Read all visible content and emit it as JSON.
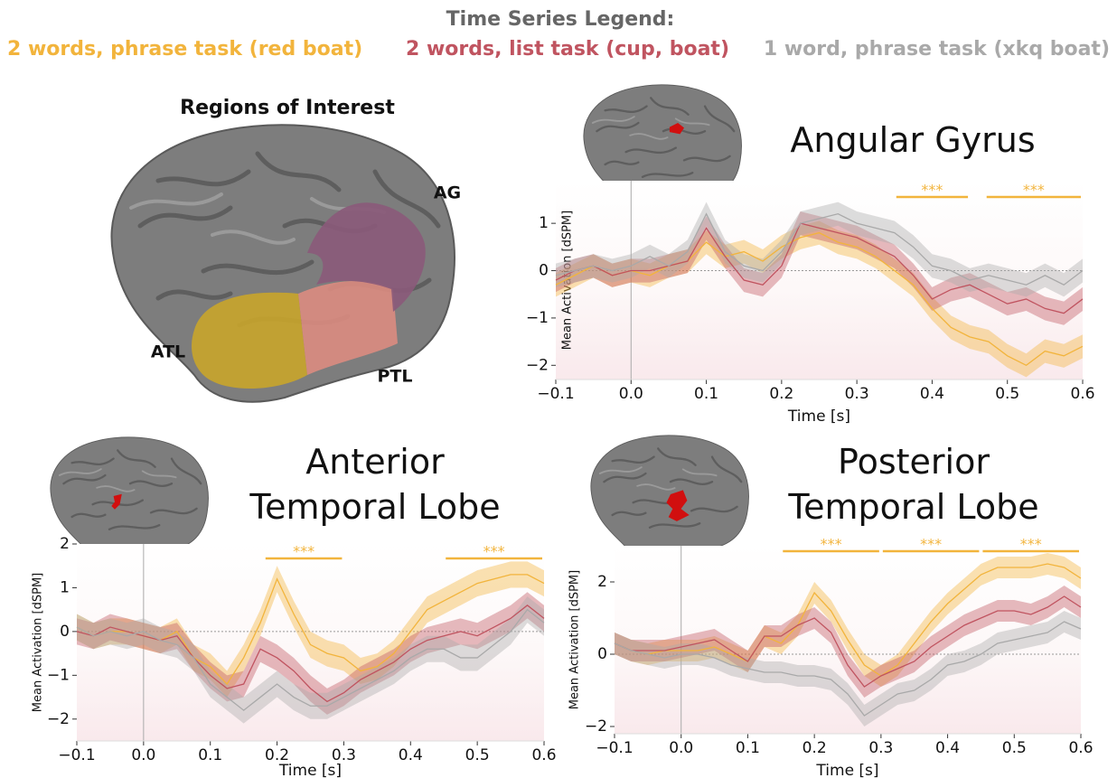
{
  "legend_title": "Time Series Legend:",
  "roi": {
    "title": "Regions of Interest",
    "labels": [
      "AG",
      "ATL",
      "PTL"
    ]
  },
  "chart_data": [
    {
      "type": "line",
      "title": "Angular Gyrus",
      "xlabel": "Time [s]",
      "ylabel": "Mean Activation [dSPM]",
      "x": [
        -0.1,
        -0.075,
        -0.05,
        -0.025,
        0,
        0.025,
        0.05,
        0.075,
        0.1,
        0.125,
        0.15,
        0.175,
        0.2,
        0.225,
        0.25,
        0.275,
        0.3,
        0.325,
        0.35,
        0.375,
        0.4,
        0.425,
        0.45,
        0.475,
        0.5,
        0.525,
        0.55,
        0.575,
        0.6
      ],
      "series": [
        {
          "name": "2 words, phrase task (red boat)",
          "color": "#f2b43c",
          "error": 0.25,
          "values": [
            -0.3,
            -0.1,
            0.1,
            -0.1,
            0.0,
            -0.1,
            0.1,
            0.2,
            0.6,
            0.3,
            0.4,
            0.2,
            0.5,
            0.7,
            0.8,
            0.6,
            0.5,
            0.3,
            0.0,
            -0.3,
            -0.8,
            -1.2,
            -1.4,
            -1.5,
            -1.8,
            -2.0,
            -1.7,
            -1.8,
            -1.6
          ]
        },
        {
          "name": "2 words, list task (cup, boat)",
          "color": "#c05460",
          "error": 0.25,
          "values": [
            -0.2,
            0.0,
            0.1,
            -0.1,
            0.0,
            0.0,
            0.1,
            0.2,
            0.9,
            0.3,
            -0.2,
            -0.3,
            0.1,
            1.0,
            0.9,
            0.8,
            0.7,
            0.5,
            0.3,
            -0.1,
            -0.6,
            -0.4,
            -0.3,
            -0.5,
            -0.7,
            -0.6,
            -0.8,
            -0.9,
            -0.6
          ]
        },
        {
          "name": "1 word, phrase task (xkq boat)",
          "color": "#a9a9a9",
          "error": 0.25,
          "values": [
            -0.1,
            0.0,
            0.1,
            0.0,
            0.1,
            0.3,
            0.1,
            0.4,
            1.2,
            0.4,
            0.1,
            0.0,
            0.4,
            1.0,
            1.1,
            1.2,
            1.0,
            0.9,
            0.8,
            0.5,
            0.1,
            0.0,
            -0.2,
            -0.1,
            -0.2,
            -0.3,
            -0.1,
            -0.3,
            0.0
          ]
        }
      ],
      "xlim": [
        -0.1,
        0.6
      ],
      "xticks": [
        {
          "value": -0.1,
          "label": "−0.1"
        },
        {
          "value": 0,
          "label": "0.0"
        },
        0.1,
        0.2,
        0.3,
        0.4,
        0.5,
        0.6
      ],
      "ylim": [
        -2.3,
        1.9
      ],
      "yticks": [
        {
          "value": -2,
          "label": "−2"
        },
        {
          "value": -1,
          "label": "−1"
        },
        0,
        1
      ],
      "annotations": [
        {
          "text": "***",
          "x0": 0.35,
          "x1": 0.45,
          "color": "#f2b43c"
        },
        {
          "text": "***",
          "x0": 0.47,
          "x1": 0.6,
          "color": "#f2b43c"
        }
      ]
    },
    {
      "type": "line",
      "title": "Anterior Temporal Lobe",
      "xlabel": "Time [s]",
      "ylabel": "Mean Activation [dSPM]",
      "x": [
        -0.1,
        -0.075,
        -0.05,
        -0.025,
        0,
        0.025,
        0.05,
        0.075,
        0.1,
        0.125,
        0.15,
        0.175,
        0.2,
        0.225,
        0.25,
        0.275,
        0.3,
        0.325,
        0.35,
        0.375,
        0.4,
        0.425,
        0.45,
        0.475,
        0.5,
        0.525,
        0.55,
        0.575,
        0.6
      ],
      "series": [
        {
          "color": "#f2b43c",
          "error": 0.3,
          "values": [
            0.1,
            -0.1,
            0.0,
            0.0,
            -0.1,
            -0.2,
            0.0,
            -0.6,
            -0.8,
            -1.2,
            -0.6,
            0.2,
            1.2,
            0.4,
            -0.3,
            -0.5,
            -0.6,
            -0.9,
            -0.8,
            -0.5,
            0.0,
            0.5,
            0.7,
            0.9,
            1.1,
            1.2,
            1.3,
            1.3,
            1.1
          ]
        },
        {
          "color": "#c05460",
          "error": 0.3,
          "values": [
            0.0,
            -0.1,
            0.1,
            0.0,
            -0.1,
            -0.2,
            -0.1,
            -0.6,
            -1.0,
            -1.3,
            -1.2,
            -0.4,
            -0.6,
            -0.9,
            -1.3,
            -1.6,
            -1.4,
            -1.1,
            -0.9,
            -0.7,
            -0.4,
            -0.2,
            -0.1,
            0.0,
            -0.1,
            0.1,
            0.3,
            0.6,
            0.3
          ]
        },
        {
          "color": "#a9a9a9",
          "error": 0.3,
          "values": [
            0.1,
            -0.1,
            0.0,
            -0.1,
            0.0,
            -0.2,
            -0.3,
            -0.6,
            -1.2,
            -1.5,
            -1.8,
            -1.5,
            -1.2,
            -1.5,
            -1.7,
            -1.7,
            -1.5,
            -1.3,
            -1.1,
            -0.9,
            -0.6,
            -0.4,
            -0.4,
            -0.6,
            -0.6,
            -0.3,
            0.0,
            0.5,
            0.2
          ]
        }
      ],
      "xlim": [
        -0.1,
        0.6
      ],
      "xticks": [
        {
          "value": -0.1,
          "label": "−0.1"
        },
        {
          "value": 0,
          "label": "0.0"
        },
        0.1,
        0.2,
        0.3,
        0.4,
        0.5,
        0.6
      ],
      "ylim": [
        -2.5,
        2
      ],
      "yticks": [
        {
          "value": -2,
          "label": "−2"
        },
        {
          "value": -1,
          "label": "−1"
        },
        0,
        1,
        2
      ],
      "annotations": [
        {
          "text": "***",
          "x0": 0.18,
          "x1": 0.3,
          "color": "#f2b43c"
        },
        {
          "text": "***",
          "x0": 0.45,
          "x1": 0.6,
          "color": "#f2b43c"
        }
      ]
    },
    {
      "type": "line",
      "title": "Posterior Temporal Lobe",
      "xlabel": "Time [s]",
      "ylabel": "Mean Activation [dSPM]",
      "x": [
        -0.1,
        -0.075,
        -0.05,
        -0.025,
        0,
        0.025,
        0.05,
        0.075,
        0.1,
        0.125,
        0.15,
        0.175,
        0.2,
        0.225,
        0.25,
        0.275,
        0.3,
        0.325,
        0.35,
        0.375,
        0.4,
        0.425,
        0.45,
        0.475,
        0.5,
        0.525,
        0.55,
        0.575,
        0.6
      ],
      "series": [
        {
          "color": "#f2b43c",
          "error": 0.3,
          "values": [
            0.3,
            0.1,
            0.0,
            0.1,
            0.1,
            0.1,
            0.2,
            0.0,
            -0.2,
            0.5,
            0.3,
            0.8,
            1.7,
            1.2,
            0.4,
            -0.3,
            -0.6,
            -0.3,
            0.3,
            0.9,
            1.4,
            1.8,
            2.2,
            2.4,
            2.4,
            2.4,
            2.5,
            2.4,
            2.1
          ]
        },
        {
          "color": "#c05460",
          "error": 0.3,
          "values": [
            0.3,
            0.1,
            0.1,
            0.1,
            0.2,
            0.3,
            0.4,
            0.1,
            -0.2,
            0.5,
            0.5,
            0.8,
            1.0,
            0.6,
            -0.3,
            -0.9,
            -0.6,
            -0.4,
            -0.2,
            0.2,
            0.5,
            0.8,
            1.0,
            1.2,
            1.2,
            1.1,
            1.3,
            1.6,
            1.3
          ]
        },
        {
          "color": "#a9a9a9",
          "error": 0.3,
          "values": [
            0.3,
            0.1,
            0.0,
            -0.1,
            0.0,
            0.0,
            -0.1,
            -0.3,
            -0.4,
            -0.5,
            -0.5,
            -0.6,
            -0.6,
            -0.7,
            -1.1,
            -1.7,
            -1.4,
            -1.1,
            -1.0,
            -0.7,
            -0.3,
            -0.2,
            0.0,
            0.3,
            0.4,
            0.5,
            0.6,
            0.9,
            0.7
          ]
        }
      ],
      "xlim": [
        -0.1,
        0.6
      ],
      "xticks": [
        {
          "value": -0.1,
          "label": "−0.1"
        },
        {
          "value": 0,
          "label": "0.0"
        },
        0.1,
        0.2,
        0.3,
        0.4,
        0.5,
        0.6
      ],
      "ylim": [
        -2.2,
        3
      ],
      "yticks": [
        {
          "value": -2,
          "label": "−2"
        },
        0,
        2
      ],
      "annotations": [
        {
          "text": "***",
          "x0": 0.15,
          "x1": 0.3,
          "color": "#f2b43c"
        },
        {
          "text": "***",
          "x0": 0.3,
          "x1": 0.45,
          "color": "#f2b43c"
        },
        {
          "text": "***",
          "x0": 0.45,
          "x1": 0.6,
          "color": "#f2b43c"
        }
      ]
    }
  ]
}
